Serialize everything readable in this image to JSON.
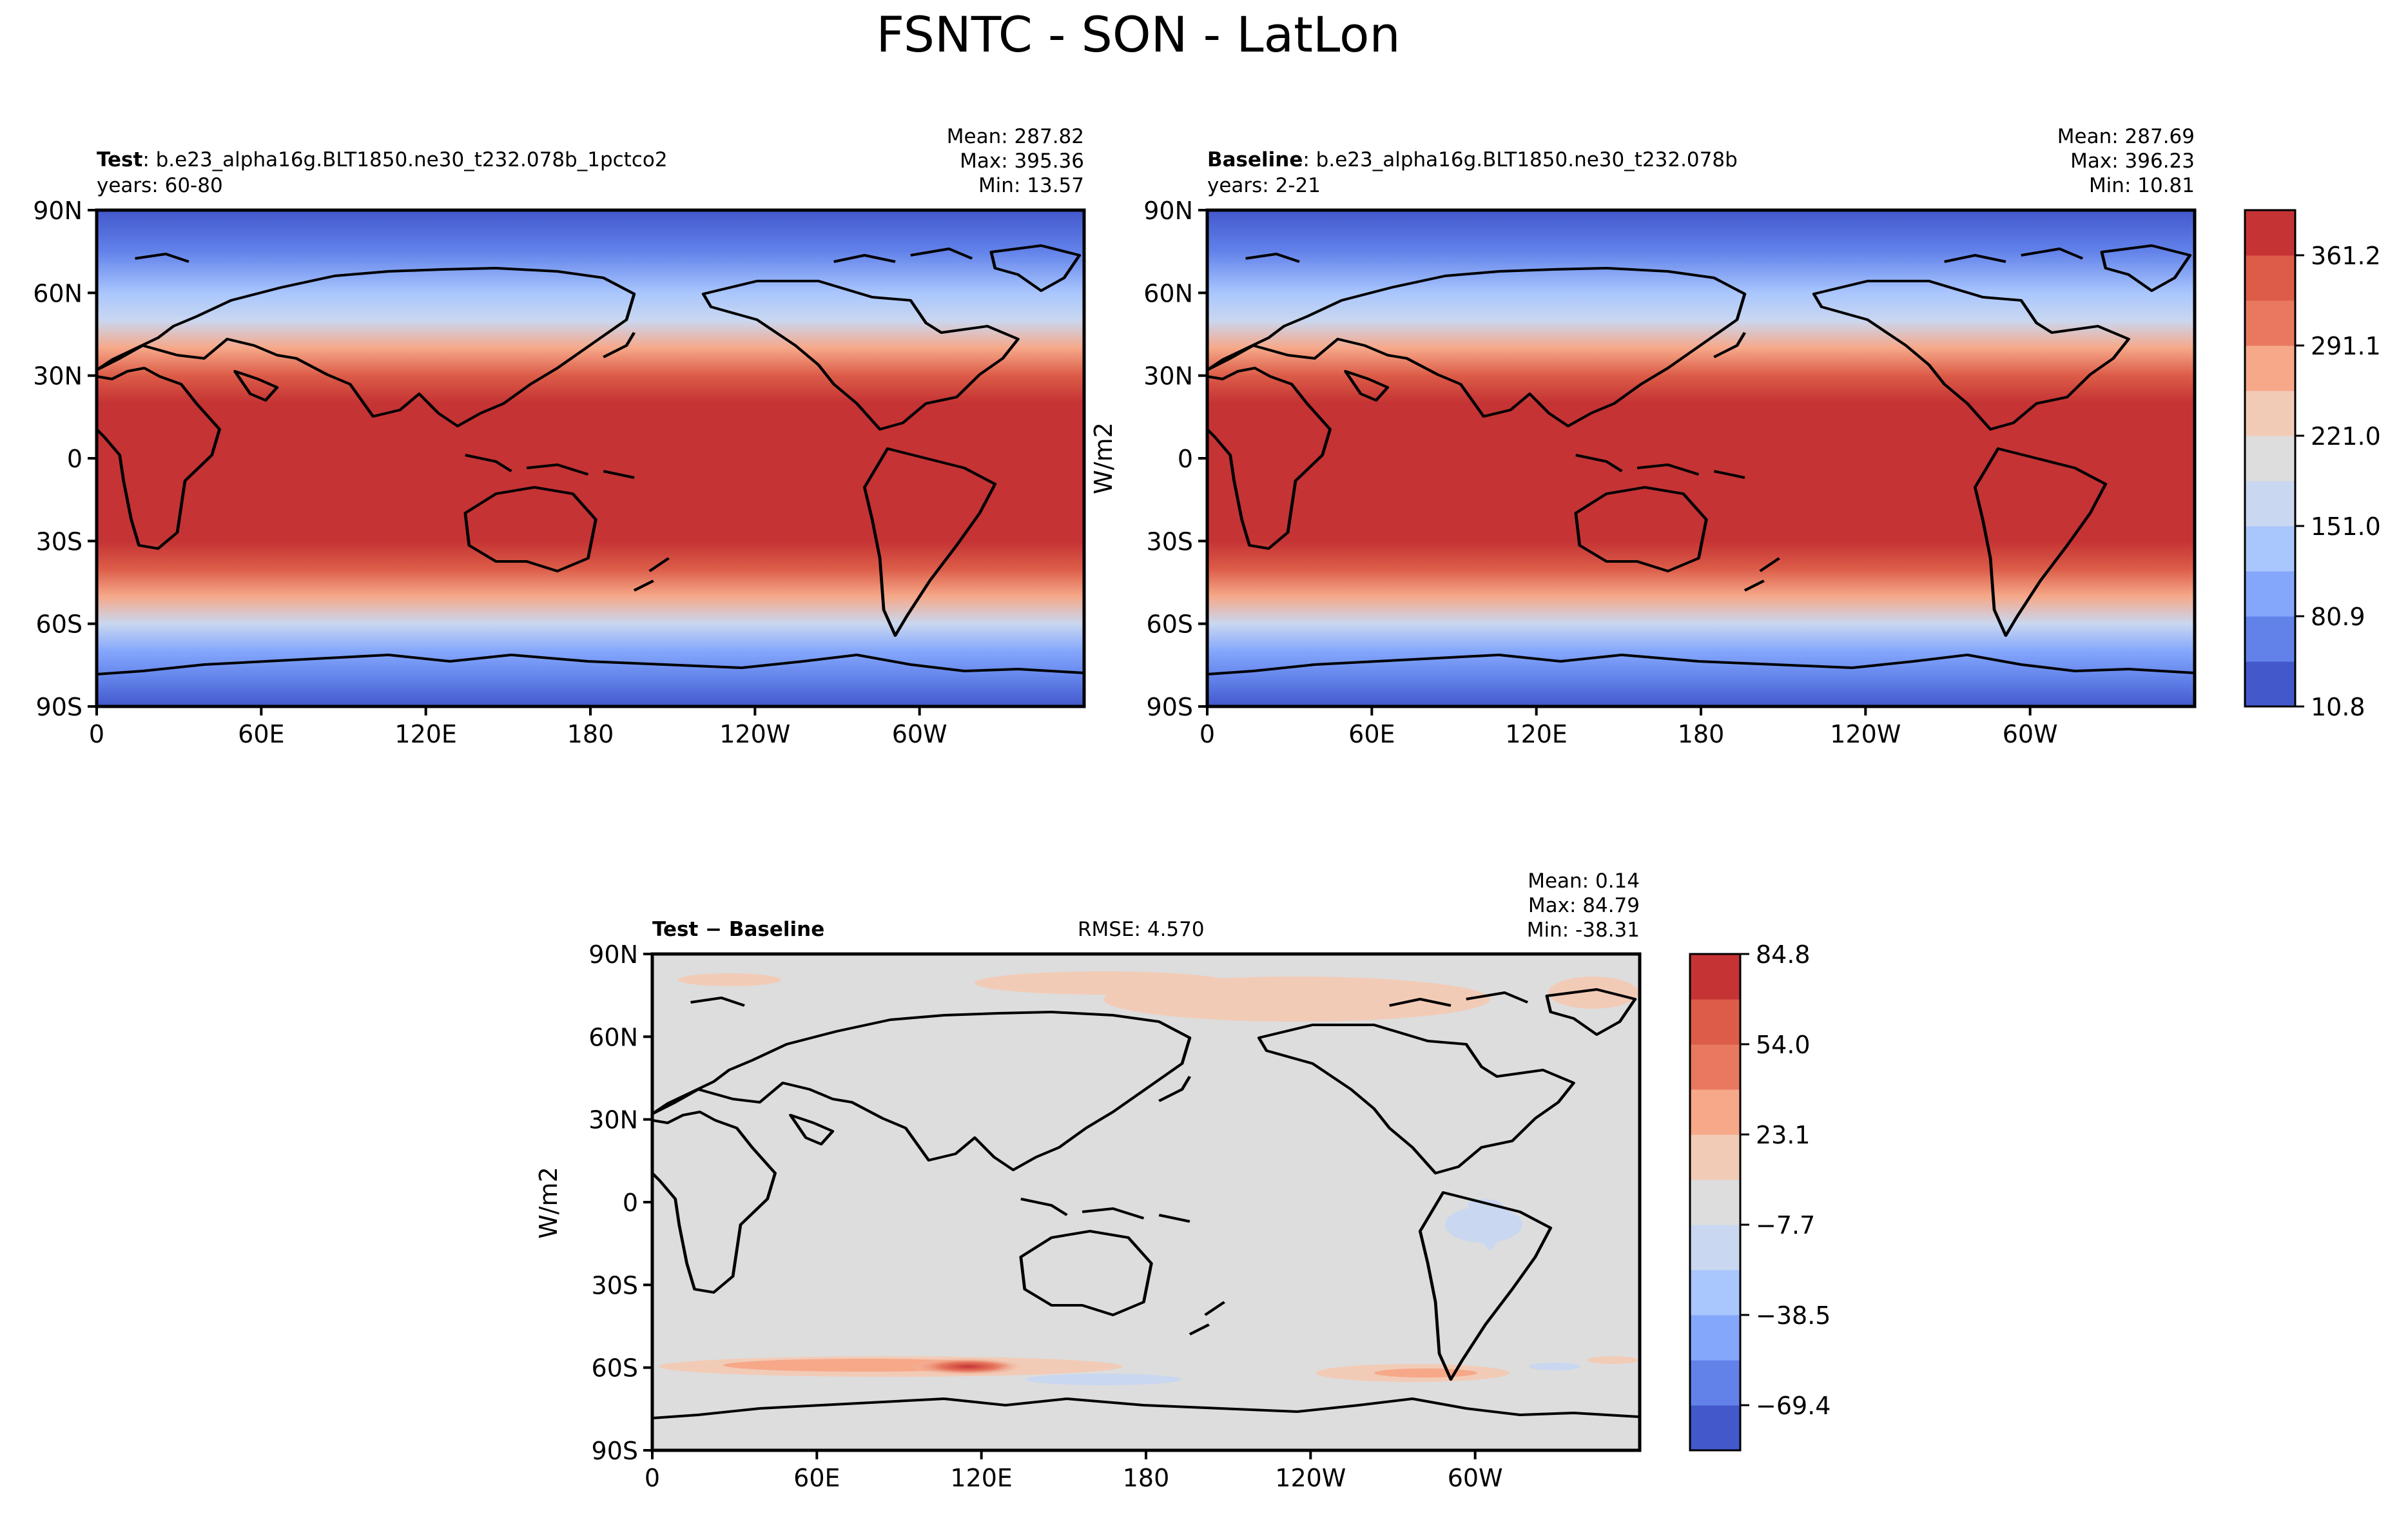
{
  "figure": {
    "title": "FSNTC - SON - LatLon"
  },
  "chart_data": [
    {
      "type": "heatmap",
      "panel": "test",
      "label_bold": "Test",
      "label_rest": ": b.e23_alpha16g.BLT1850.ne30_t232.078b_1pctco2",
      "years": "years: 60-80",
      "stats": [
        "Mean: 287.82",
        "Max: 395.36",
        "Min: 13.57"
      ],
      "xticks": [
        "0",
        "60E",
        "120E",
        "180",
        "120W",
        "60W"
      ],
      "yticks": [
        "90N",
        "60N",
        "30N",
        "0",
        "30S",
        "60S",
        "90S"
      ],
      "zonal_profile": {
        "latitude": [
          90,
          75,
          60,
          50,
          40,
          30,
          20,
          10,
          0,
          -10,
          -20,
          -30,
          -40,
          -50,
          -60,
          -70,
          -80,
          -90
        ],
        "value": [
          30,
          60,
          110,
          170,
          240,
          300,
          345,
          375,
          385,
          385,
          375,
          350,
          305,
          250,
          170,
          90,
          60,
          40
        ]
      }
    },
    {
      "type": "heatmap",
      "panel": "baseline",
      "label_bold": "Baseline",
      "label_rest": ": b.e23_alpha16g.BLT1850.ne30_t232.078b",
      "years": "years: 2-21",
      "stats": [
        "Mean: 287.69",
        "Max: 396.23",
        "Min: 10.81"
      ],
      "ylabel": "W/m2",
      "xticks": [
        "0",
        "60E",
        "120E",
        "180",
        "120W",
        "60W"
      ],
      "yticks": [
        "90N",
        "60N",
        "30N",
        "0",
        "30S",
        "60S",
        "90S"
      ],
      "colorbar": {
        "levels": [
          10.8,
          361.2
        ],
        "ticks": [
          "361.2",
          "291.1",
          "221.0",
          "151.0",
          "80.9",
          "10.8"
        ]
      }
    },
    {
      "type": "heatmap",
      "panel": "difference",
      "label_bold": "Test − Baseline",
      "rmse": "RMSE: 4.570",
      "stats": [
        "Mean:  0.14",
        "Max: 84.79",
        "Min: -38.31"
      ],
      "ylabel": "W/m2",
      "xticks": [
        "0",
        "60E",
        "120E",
        "180",
        "120W",
        "60W"
      ],
      "yticks": [
        "90N",
        "60N",
        "30N",
        "0",
        "30S",
        "60S",
        "90S"
      ],
      "colorbar": {
        "levels": [
          -84.8,
          84.8
        ],
        "ticks": [
          "84.8",
          "54.0",
          "23.1",
          "−7.7",
          "−38.5",
          "−69.4"
        ]
      }
    }
  ],
  "colors": {
    "bins": [
      "#4358cb",
      "#6282ea",
      "#84a7fc",
      "#a9c6fd",
      "#c9d7f0",
      "#dddddd",
      "#f2cbb7",
      "#f6a889",
      "#e8795f",
      "#dc5c48",
      "#c53334"
    ]
  }
}
